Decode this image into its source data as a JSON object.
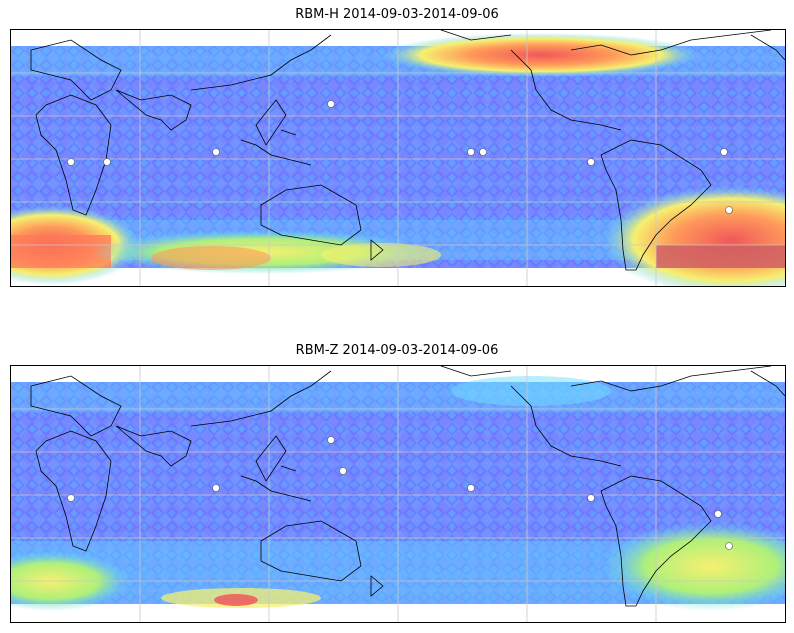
{
  "panels": [
    {
      "id": "top",
      "title": "RBM-H 2014-09-03-2014-09-06",
      "colors": {
        "background_band": "#7aa0ff",
        "low": "#6a6cff",
        "mid": "#5fd8ff",
        "high_yellow": "#f6f070",
        "high_orange": "#ff9a5a",
        "high_red": "#f0585a"
      },
      "hotspots": [
        "south-indian-ocean",
        "south-pacific-strip",
        "north-atlantic",
        "south-atlantic"
      ]
    },
    {
      "id": "bottom",
      "title": "RBM-Z 2014-09-03-2014-09-06",
      "colors": {
        "background_band": "#7aa0ff",
        "low": "#6a6cff",
        "mid": "#5fd8ff",
        "high_yellow": "#f6f070",
        "high_orange": "#ff9a5a",
        "high_red": "#f0585a"
      },
      "hotspots": [
        "south-atlantic",
        "south-indian-fringe",
        "south-pacific-strip"
      ]
    }
  ],
  "icons": {
    "station_marker": "white-diamond-icon"
  }
}
